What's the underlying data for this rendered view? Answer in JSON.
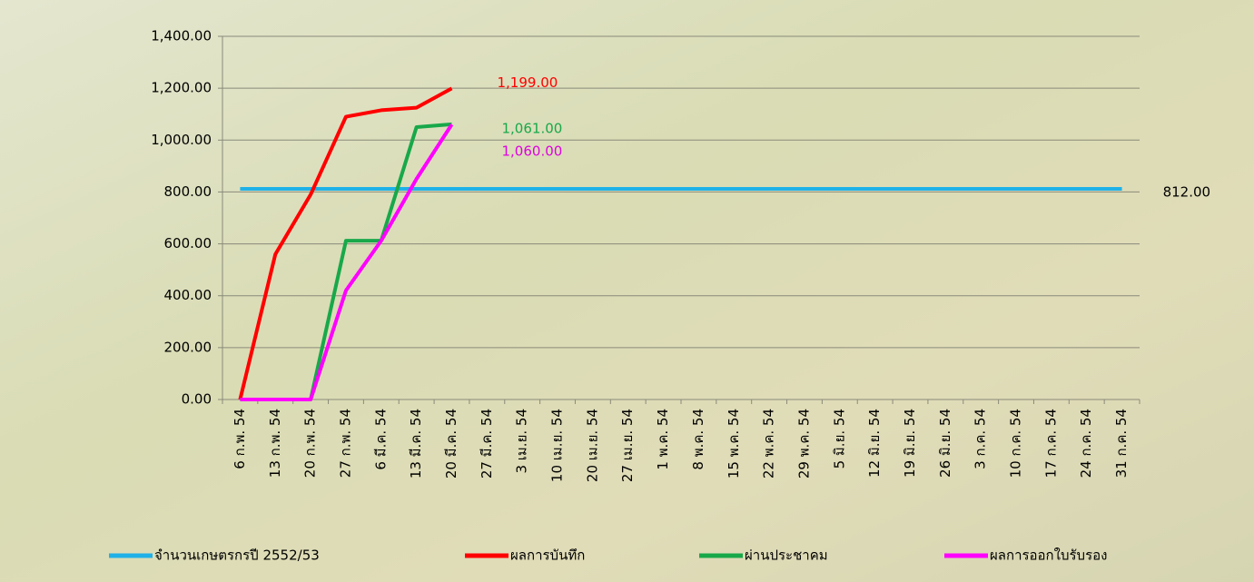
{
  "chart_data": {
    "type": "line",
    "categories": [
      "6 ก.พ. 54",
      "13 ก.พ. 54",
      "20 ก.พ. 54",
      "27 ก.พ. 54",
      "6 มี.ค. 54",
      "13 มี.ค. 54",
      "20 มี.ค. 54",
      "27 มี.ค. 54",
      "3 เม.ย. 54",
      "10 เม.ย. 54",
      "20 เม.ย. 54",
      "27 เม.ย. 54",
      "1 พ.ค. 54",
      "8 พ.ค. 54",
      "15 พ.ค. 54",
      "22 พ.ค. 54",
      "29 พ.ค. 54",
      "5 มิ.ย. 54",
      "12 มิ.ย. 54",
      "19 มิ.ย. 54",
      "26 มิ.ย. 54",
      "3 ก.ค. 54",
      "10 ก.ค. 54",
      "17 ก.ค. 54",
      "24 ก.ค. 54",
      "31 ก.ค. 54"
    ],
    "series": [
      {
        "name": "จำนวนเกษตรกรปี  2552/53",
        "color": "#1fb1e8",
        "label_color": "#000000",
        "values": [
          812,
          812,
          812,
          812,
          812,
          812,
          812,
          812,
          812,
          812,
          812,
          812,
          812,
          812,
          812,
          812,
          812,
          812,
          812,
          812,
          812,
          812,
          812,
          812,
          812,
          812
        ],
        "value_labels": [
          null,
          null,
          null,
          null,
          null,
          null,
          null,
          null,
          null,
          null,
          null,
          null,
          null,
          null,
          null,
          null,
          null,
          null,
          null,
          null,
          null,
          null,
          null,
          null,
          null,
          "812.00"
        ]
      },
      {
        "name": "ผลการบันทึก",
        "color": "#ff0000",
        "label_color": "#ff0000",
        "values": [
          0,
          560,
          790,
          1090,
          1115,
          1125,
          1199,
          null,
          null,
          null,
          null,
          null,
          null,
          null,
          null,
          null,
          null,
          null,
          null,
          null,
          null,
          null,
          null,
          null,
          null,
          null
        ],
        "value_labels": [
          null,
          null,
          null,
          null,
          null,
          null,
          "1,199.00",
          null,
          null,
          null,
          null,
          null,
          null,
          null,
          null,
          null,
          null,
          null,
          null,
          null,
          null,
          null,
          null,
          null,
          null,
          null
        ]
      },
      {
        "name": "ผ่านประชาคม",
        "color": "#18a84a",
        "label_color": "#18a84a",
        "values": [
          0,
          0,
          0,
          612,
          612,
          1050,
          1061,
          null,
          null,
          null,
          null,
          null,
          null,
          null,
          null,
          null,
          null,
          null,
          null,
          null,
          null,
          null,
          null,
          null,
          null,
          null
        ],
        "value_labels": [
          null,
          null,
          null,
          null,
          null,
          null,
          "1,061.00",
          null,
          null,
          null,
          null,
          null,
          null,
          null,
          null,
          null,
          null,
          null,
          null,
          null,
          null,
          null,
          null,
          null,
          null,
          null
        ]
      },
      {
        "name": "ผลการออกใบรับรอง",
        "color": "#ff00ff",
        "label_color": "#e000e0",
        "values": [
          0,
          0,
          0,
          420,
          612,
          850,
          1060,
          null,
          null,
          null,
          null,
          null,
          null,
          null,
          null,
          null,
          null,
          null,
          null,
          null,
          null,
          null,
          null,
          null,
          null,
          null
        ],
        "value_labels": [
          null,
          null,
          null,
          null,
          null,
          null,
          "1,060.00",
          null,
          null,
          null,
          null,
          null,
          null,
          null,
          null,
          null,
          null,
          null,
          null,
          null,
          null,
          null,
          null,
          null,
          null,
          null
        ]
      }
    ],
    "ylim": [
      0,
      1400
    ],
    "yticks": [
      {
        "value": 0,
        "label": "0.00"
      },
      {
        "value": 200,
        "label": "200.00"
      },
      {
        "value": 400,
        "label": "400.00"
      },
      {
        "value": 600,
        "label": "600.00"
      },
      {
        "value": 800,
        "label": "800.00"
      },
      {
        "value": 1000,
        "label": "1,000.00"
      },
      {
        "value": 1200,
        "label": "1,200.00"
      },
      {
        "value": 1400,
        "label": "1,400.00"
      }
    ],
    "grid": true,
    "legend": "bottom"
  }
}
